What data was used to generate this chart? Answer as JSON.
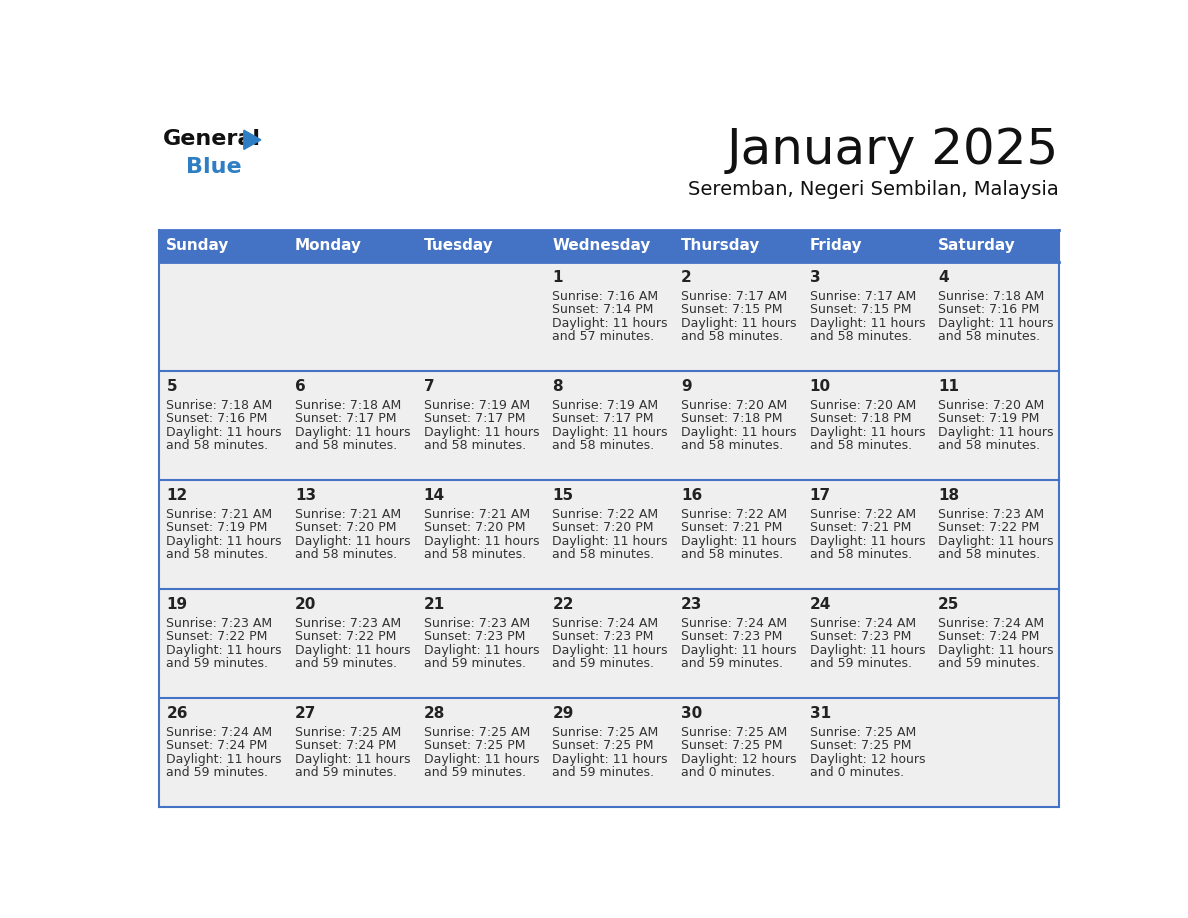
{
  "title": "January 2025",
  "subtitle": "Seremban, Negeri Sembilan, Malaysia",
  "days_of_week": [
    "Sunday",
    "Monday",
    "Tuesday",
    "Wednesday",
    "Thursday",
    "Friday",
    "Saturday"
  ],
  "header_bg": "#4472C4",
  "header_text": "#FFFFFF",
  "cell_bg": "#EFEFEF",
  "cell_bg_white": "#FFFFFF",
  "grid_line_color": "#4472C4",
  "day_number_color": "#222222",
  "text_color": "#333333",
  "title_color": "#111111",
  "subtitle_color": "#111111",
  "logo_general_color": "#111111",
  "logo_blue_color": "#2E7EC4",
  "logo_triangle_color": "#2E7EC4",
  "weeks": [
    {
      "row": 0,
      "days": [
        {
          "day": null,
          "col": 0
        },
        {
          "day": null,
          "col": 1
        },
        {
          "day": null,
          "col": 2
        },
        {
          "day": 1,
          "col": 3,
          "sunrise": "7:16 AM",
          "sunset": "7:14 PM",
          "daylight": "11 hours and 57 minutes."
        },
        {
          "day": 2,
          "col": 4,
          "sunrise": "7:17 AM",
          "sunset": "7:15 PM",
          "daylight": "11 hours and 58 minutes."
        },
        {
          "day": 3,
          "col": 5,
          "sunrise": "7:17 AM",
          "sunset": "7:15 PM",
          "daylight": "11 hours and 58 minutes."
        },
        {
          "day": 4,
          "col": 6,
          "sunrise": "7:18 AM",
          "sunset": "7:16 PM",
          "daylight": "11 hours and 58 minutes."
        }
      ]
    },
    {
      "row": 1,
      "days": [
        {
          "day": 5,
          "col": 0,
          "sunrise": "7:18 AM",
          "sunset": "7:16 PM",
          "daylight": "11 hours and 58 minutes."
        },
        {
          "day": 6,
          "col": 1,
          "sunrise": "7:18 AM",
          "sunset": "7:17 PM",
          "daylight": "11 hours and 58 minutes."
        },
        {
          "day": 7,
          "col": 2,
          "sunrise": "7:19 AM",
          "sunset": "7:17 PM",
          "daylight": "11 hours and 58 minutes."
        },
        {
          "day": 8,
          "col": 3,
          "sunrise": "7:19 AM",
          "sunset": "7:17 PM",
          "daylight": "11 hours and 58 minutes."
        },
        {
          "day": 9,
          "col": 4,
          "sunrise": "7:20 AM",
          "sunset": "7:18 PM",
          "daylight": "11 hours and 58 minutes."
        },
        {
          "day": 10,
          "col": 5,
          "sunrise": "7:20 AM",
          "sunset": "7:18 PM",
          "daylight": "11 hours and 58 minutes."
        },
        {
          "day": 11,
          "col": 6,
          "sunrise": "7:20 AM",
          "sunset": "7:19 PM",
          "daylight": "11 hours and 58 minutes."
        }
      ]
    },
    {
      "row": 2,
      "days": [
        {
          "day": 12,
          "col": 0,
          "sunrise": "7:21 AM",
          "sunset": "7:19 PM",
          "daylight": "11 hours and 58 minutes."
        },
        {
          "day": 13,
          "col": 1,
          "sunrise": "7:21 AM",
          "sunset": "7:20 PM",
          "daylight": "11 hours and 58 minutes."
        },
        {
          "day": 14,
          "col": 2,
          "sunrise": "7:21 AM",
          "sunset": "7:20 PM",
          "daylight": "11 hours and 58 minutes."
        },
        {
          "day": 15,
          "col": 3,
          "sunrise": "7:22 AM",
          "sunset": "7:20 PM",
          "daylight": "11 hours and 58 minutes."
        },
        {
          "day": 16,
          "col": 4,
          "sunrise": "7:22 AM",
          "sunset": "7:21 PM",
          "daylight": "11 hours and 58 minutes."
        },
        {
          "day": 17,
          "col": 5,
          "sunrise": "7:22 AM",
          "sunset": "7:21 PM",
          "daylight": "11 hours and 58 minutes."
        },
        {
          "day": 18,
          "col": 6,
          "sunrise": "7:23 AM",
          "sunset": "7:22 PM",
          "daylight": "11 hours and 58 minutes."
        }
      ]
    },
    {
      "row": 3,
      "days": [
        {
          "day": 19,
          "col": 0,
          "sunrise": "7:23 AM",
          "sunset": "7:22 PM",
          "daylight": "11 hours and 59 minutes."
        },
        {
          "day": 20,
          "col": 1,
          "sunrise": "7:23 AM",
          "sunset": "7:22 PM",
          "daylight": "11 hours and 59 minutes."
        },
        {
          "day": 21,
          "col": 2,
          "sunrise": "7:23 AM",
          "sunset": "7:23 PM",
          "daylight": "11 hours and 59 minutes."
        },
        {
          "day": 22,
          "col": 3,
          "sunrise": "7:24 AM",
          "sunset": "7:23 PM",
          "daylight": "11 hours and 59 minutes."
        },
        {
          "day": 23,
          "col": 4,
          "sunrise": "7:24 AM",
          "sunset": "7:23 PM",
          "daylight": "11 hours and 59 minutes."
        },
        {
          "day": 24,
          "col": 5,
          "sunrise": "7:24 AM",
          "sunset": "7:23 PM",
          "daylight": "11 hours and 59 minutes."
        },
        {
          "day": 25,
          "col": 6,
          "sunrise": "7:24 AM",
          "sunset": "7:24 PM",
          "daylight": "11 hours and 59 minutes."
        }
      ]
    },
    {
      "row": 4,
      "days": [
        {
          "day": 26,
          "col": 0,
          "sunrise": "7:24 AM",
          "sunset": "7:24 PM",
          "daylight": "11 hours and 59 minutes."
        },
        {
          "day": 27,
          "col": 1,
          "sunrise": "7:25 AM",
          "sunset": "7:24 PM",
          "daylight": "11 hours and 59 minutes."
        },
        {
          "day": 28,
          "col": 2,
          "sunrise": "7:25 AM",
          "sunset": "7:25 PM",
          "daylight": "11 hours and 59 minutes."
        },
        {
          "day": 29,
          "col": 3,
          "sunrise": "7:25 AM",
          "sunset": "7:25 PM",
          "daylight": "11 hours and 59 minutes."
        },
        {
          "day": 30,
          "col": 4,
          "sunrise": "7:25 AM",
          "sunset": "7:25 PM",
          "daylight": "12 hours and 0 minutes."
        },
        {
          "day": 31,
          "col": 5,
          "sunrise": "7:25 AM",
          "sunset": "7:25 PM",
          "daylight": "12 hours and 0 minutes."
        },
        {
          "day": null,
          "col": 6
        }
      ]
    }
  ]
}
